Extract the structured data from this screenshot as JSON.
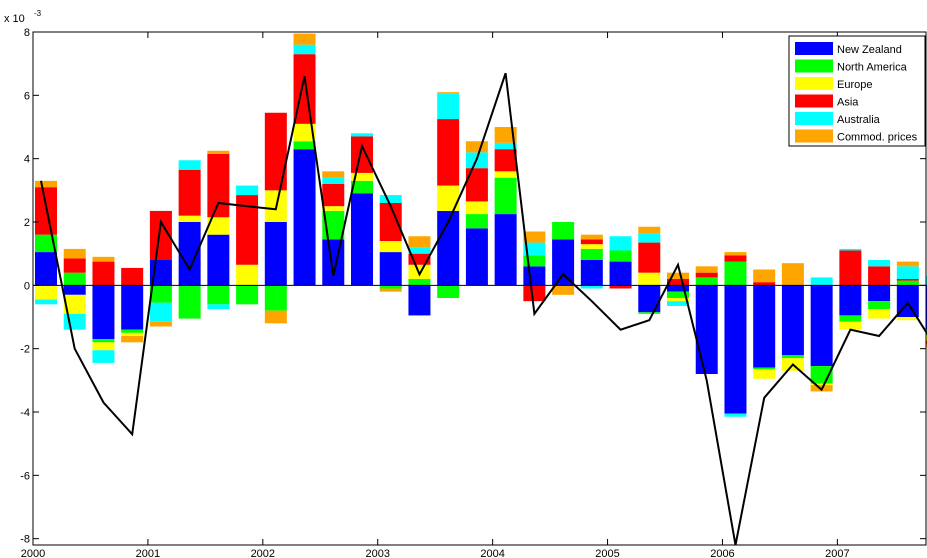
{
  "chart_data": {
    "type": "bar",
    "stacked": true,
    "title": "",
    "xlabel": "",
    "ylabel": "",
    "y_scale_label": "x 10",
    "y_scale_exponent": "-3",
    "ylim": [
      -8.2,
      8.0
    ],
    "yticks": [
      -8,
      -6,
      -4,
      -2,
      0,
      2,
      4,
      6,
      8
    ],
    "ytick_labels": [
      "-8",
      "-6",
      "-4",
      "-2",
      "0",
      "2",
      "4",
      "6",
      "8"
    ],
    "xlim": [
      2000.0,
      2007.78
    ],
    "xticks": [
      2000,
      2001,
      2002,
      2003,
      2004,
      2005,
      2006,
      2007
    ],
    "xtick_labels": [
      "2000",
      "2001",
      "2002",
      "2003",
      "2004",
      "2005",
      "2006",
      "2007"
    ],
    "grid": false,
    "legend_position": "top-right",
    "x": [
      2000.0,
      2000.25,
      2000.5,
      2000.75,
      2001.0,
      2001.25,
      2001.5,
      2001.75,
      2002.0,
      2002.25,
      2002.5,
      2002.75,
      2003.0,
      2003.25,
      2003.5,
      2003.75,
      2004.0,
      2004.25,
      2004.5,
      2004.75,
      2005.0,
      2005.25,
      2005.5,
      2005.75,
      2006.0,
      2006.25,
      2006.5,
      2006.75,
      2007.0,
      2007.25,
      2007.5,
      2007.75
    ],
    "series": [
      {
        "name": "New Zealand",
        "color": "#0000ff",
        "values": [
          1.05,
          -0.3,
          -1.7,
          -1.4,
          0.8,
          2.0,
          1.6,
          0.0,
          2.0,
          4.3,
          1.45,
          2.9,
          1.05,
          -0.95,
          2.35,
          1.8,
          2.25,
          0.6,
          1.45,
          0.8,
          0.75,
          -0.85,
          -0.2,
          -2.8,
          -4.05,
          -2.6,
          -2.2,
          -2.55,
          -0.95,
          -0.5,
          -1.0,
          -1.4
        ]
      },
      {
        "name": "North America",
        "color": "#00ff00",
        "values": [
          0.55,
          0.4,
          -0.1,
          -0.1,
          -0.55,
          -1.05,
          -0.6,
          -0.6,
          -0.8,
          0.25,
          0.9,
          0.4,
          -0.1,
          0.2,
          -0.4,
          0.45,
          1.15,
          0.35,
          0.55,
          0.35,
          0.35,
          -0.05,
          -0.2,
          0.25,
          0.75,
          -0.05,
          -0.1,
          -0.55,
          -0.2,
          -0.25,
          0.15,
          -0.05
        ]
      },
      {
        "name": "Europe",
        "color": "#ffff00",
        "values": [
          -0.45,
          -0.6,
          -0.25,
          -0.1,
          0.0,
          0.2,
          0.55,
          0.65,
          1.0,
          0.55,
          0.15,
          0.25,
          0.35,
          0.45,
          0.8,
          0.4,
          0.2,
          0.0,
          0.0,
          0.15,
          0.0,
          0.4,
          -0.1,
          0.0,
          0.0,
          -0.3,
          -0.4,
          -0.05,
          -0.25,
          -0.3,
          -0.1,
          -0.3
        ]
      },
      {
        "name": "Asia",
        "color": "#ff0000",
        "values": [
          1.5,
          0.45,
          0.75,
          0.55,
          1.55,
          1.45,
          2.0,
          2.2,
          2.45,
          2.2,
          0.7,
          1.15,
          1.2,
          0.35,
          2.1,
          1.05,
          0.7,
          -0.5,
          0.0,
          0.15,
          -0.1,
          0.95,
          0.2,
          0.15,
          0.2,
          0.1,
          0.0,
          0.0,
          1.1,
          0.6,
          0.05,
          -0.1
        ]
      },
      {
        "name": "Australia",
        "color": "#00ffff",
        "values": [
          -0.15,
          -0.5,
          -0.4,
          0.0,
          -0.6,
          0.3,
          -0.15,
          0.3,
          0.0,
          0.3,
          0.2,
          0.1,
          0.25,
          0.2,
          0.8,
          0.5,
          0.2,
          0.4,
          0.0,
          -0.1,
          0.45,
          0.3,
          -0.15,
          0.0,
          -0.1,
          0.0,
          0.0,
          0.25,
          0.05,
          0.2,
          0.4,
          0.3
        ]
      },
      {
        "name": "Commod. prices",
        "color": "#ffa500",
        "values": [
          0.2,
          0.3,
          0.15,
          -0.2,
          -0.15,
          0.0,
          0.1,
          0.0,
          -0.4,
          0.35,
          0.2,
          0.0,
          -0.1,
          0.35,
          0.05,
          0.35,
          0.5,
          0.35,
          -0.3,
          0.15,
          0.0,
          0.2,
          0.2,
          0.2,
          0.1,
          0.4,
          0.7,
          -0.2,
          0.0,
          0.0,
          0.15,
          -0.1
        ]
      }
    ],
    "line": {
      "color": "#000000",
      "values": [
        3.3,
        -2.0,
        -3.7,
        -4.7,
        2.0,
        0.5,
        2.6,
        2.5,
        2.4,
        6.6,
        0.3,
        4.4,
        2.5,
        0.35,
        2.0,
        4.0,
        6.7,
        -0.9,
        0.35,
        -0.5,
        -1.4,
        -1.1,
        0.65,
        -3.0,
        -8.2,
        -3.55,
        -2.5,
        -3.3,
        -1.4,
        -1.6,
        -0.55,
        -2.0
      ]
    }
  }
}
